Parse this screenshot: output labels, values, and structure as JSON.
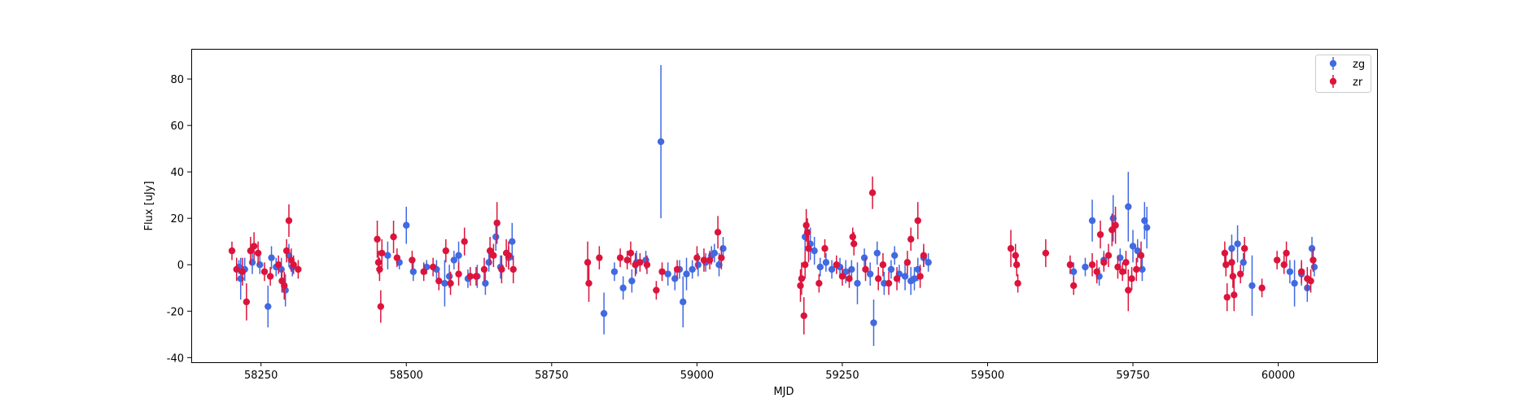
{
  "chart_data": {
    "type": "scatter",
    "title": "",
    "xlabel": "MJD",
    "ylabel": "Flux [uJy]",
    "xlim": [
      58130,
      60170
    ],
    "ylim": [
      -42,
      93
    ],
    "xticks": [
      58250,
      58500,
      58750,
      59000,
      59250,
      59500,
      59750,
      60000
    ],
    "yticks": [
      -40,
      -20,
      0,
      20,
      40,
      60,
      80
    ],
    "grid": false,
    "legend": {
      "placement": "top-right"
    },
    "series": [
      {
        "name": "zg",
        "color": "#4169e1",
        "marker": "circle",
        "points": [
          [
            58212,
            -1,
            3
          ],
          [
            58215,
            -6,
            9
          ],
          [
            58222,
            -2,
            5
          ],
          [
            58235,
            1,
            5
          ],
          [
            58248,
            0,
            4
          ],
          [
            58262,
            -18,
            9
          ],
          [
            58268,
            3,
            5
          ],
          [
            58276,
            -1,
            4
          ],
          [
            58285,
            -2,
            5
          ],
          [
            58292,
            -11,
            7
          ],
          [
            58298,
            4,
            5
          ],
          [
            58304,
            -1,
            4
          ],
          [
            58468,
            4,
            6
          ],
          [
            58488,
            1,
            3
          ],
          [
            58500,
            17,
            8
          ],
          [
            58512,
            -3,
            4
          ],
          [
            58535,
            -1,
            3
          ],
          [
            58552,
            -2,
            4
          ],
          [
            58566,
            -8,
            10
          ],
          [
            58574,
            -5,
            5
          ],
          [
            58582,
            2,
            4
          ],
          [
            58590,
            4,
            6
          ],
          [
            58606,
            -6,
            4
          ],
          [
            58622,
            -5,
            5
          ],
          [
            58636,
            -8,
            5
          ],
          [
            58642,
            1,
            4
          ],
          [
            58654,
            12,
            6
          ],
          [
            58662,
            -1,
            5
          ],
          [
            58676,
            3,
            5
          ],
          [
            58682,
            10,
            8
          ],
          [
            58840,
            -21,
            9
          ],
          [
            58858,
            -3,
            4
          ],
          [
            58873,
            -10,
            5
          ],
          [
            58888,
            -7,
            5
          ],
          [
            58896,
            1,
            5
          ],
          [
            58912,
            2,
            4
          ],
          [
            58938,
            53,
            33
          ],
          [
            58950,
            -4,
            5
          ],
          [
            58962,
            -6,
            5
          ],
          [
            58970,
            -2,
            4
          ],
          [
            58976,
            -16,
            11
          ],
          [
            58982,
            -4,
            7
          ],
          [
            58992,
            -2,
            4
          ],
          [
            59002,
            0,
            5
          ],
          [
            59015,
            1,
            4
          ],
          [
            59025,
            4,
            4
          ],
          [
            59030,
            5,
            4
          ],
          [
            59038,
            0,
            5
          ],
          [
            59045,
            7,
            5
          ],
          [
            59186,
            12,
            6
          ],
          [
            59195,
            9,
            7
          ],
          [
            59202,
            6,
            6
          ],
          [
            59212,
            -1,
            4
          ],
          [
            59222,
            1,
            4
          ],
          [
            59232,
            -2,
            4
          ],
          [
            59246,
            -1,
            4
          ],
          [
            59256,
            -3,
            5
          ],
          [
            59266,
            -2,
            4
          ],
          [
            59276,
            -8,
            9
          ],
          [
            59288,
            3,
            4
          ],
          [
            59298,
            -4,
            5
          ],
          [
            59304,
            -25,
            10
          ],
          [
            59310,
            5,
            5
          ],
          [
            59322,
            -8,
            5
          ],
          [
            59334,
            -2,
            4
          ],
          [
            59340,
            4,
            4
          ],
          [
            59348,
            -4,
            4
          ],
          [
            59358,
            -5,
            6
          ],
          [
            59368,
            -7,
            6
          ],
          [
            59374,
            -6,
            5
          ],
          [
            59380,
            -2,
            5
          ],
          [
            59390,
            3,
            4
          ],
          [
            59398,
            1,
            4
          ],
          [
            59648,
            -3,
            4
          ],
          [
            59668,
            -1,
            4
          ],
          [
            59680,
            19,
            9
          ],
          [
            59692,
            -5,
            4
          ],
          [
            59700,
            2,
            4
          ],
          [
            59716,
            20,
            10
          ],
          [
            59728,
            3,
            4
          ],
          [
            59742,
            25,
            15
          ],
          [
            59750,
            8,
            7
          ],
          [
            59758,
            6,
            5
          ],
          [
            59766,
            -2,
            5
          ],
          [
            59770,
            19,
            8
          ],
          [
            59774,
            16,
            9
          ],
          [
            59920,
            7,
            6
          ],
          [
            59930,
            9,
            8
          ],
          [
            59940,
            1,
            4
          ],
          [
            59955,
            -9,
            13
          ],
          [
            60020,
            -3,
            5
          ],
          [
            60028,
            -8,
            10
          ],
          [
            60040,
            -4,
            5
          ],
          [
            60050,
            -10,
            6
          ],
          [
            60058,
            7,
            5
          ],
          [
            60062,
            -1,
            4
          ]
        ]
      },
      {
        "name": "zr",
        "color": "#dc143c",
        "marker": "circle",
        "points": [
          [
            58200,
            6,
            4
          ],
          [
            58208,
            -2,
            5
          ],
          [
            58218,
            -3,
            6
          ],
          [
            58225,
            -16,
            8
          ],
          [
            58232,
            6,
            6
          ],
          [
            58238,
            8,
            6
          ],
          [
            58245,
            5,
            5
          ],
          [
            58256,
            -3,
            4
          ],
          [
            58266,
            -5,
            4
          ],
          [
            58280,
            0,
            4
          ],
          [
            58286,
            -7,
            5
          ],
          [
            58290,
            -9,
            6
          ],
          [
            58294,
            6,
            5
          ],
          [
            58298,
            19,
            7
          ],
          [
            58302,
            2,
            5
          ],
          [
            58306,
            0,
            4
          ],
          [
            58314,
            -2,
            4
          ],
          [
            58450,
            11,
            8
          ],
          [
            58452,
            1,
            5
          ],
          [
            58454,
            -2,
            5
          ],
          [
            58456,
            -18,
            7
          ],
          [
            58458,
            5,
            6
          ],
          [
            58478,
            12,
            7
          ],
          [
            58484,
            3,
            4
          ],
          [
            58510,
            2,
            4
          ],
          [
            58530,
            -3,
            4
          ],
          [
            58546,
            -1,
            4
          ],
          [
            58556,
            -7,
            4
          ],
          [
            58568,
            6,
            5
          ],
          [
            58576,
            -8,
            5
          ],
          [
            58590,
            -4,
            5
          ],
          [
            58600,
            10,
            6
          ],
          [
            58610,
            -5,
            4
          ],
          [
            58620,
            -5,
            4
          ],
          [
            58634,
            -2,
            5
          ],
          [
            58644,
            6,
            6
          ],
          [
            58650,
            4,
            5
          ],
          [
            58656,
            18,
            9
          ],
          [
            58664,
            -2,
            6
          ],
          [
            58672,
            5,
            6
          ],
          [
            58676,
            4,
            6
          ],
          [
            58684,
            -2,
            6
          ],
          [
            58812,
            1,
            9
          ],
          [
            58814,
            -8,
            8
          ],
          [
            58832,
            3,
            5
          ],
          [
            58868,
            3,
            4
          ],
          [
            58880,
            2,
            4
          ],
          [
            58886,
            5,
            5
          ],
          [
            58894,
            0,
            5
          ],
          [
            58902,
            1,
            4
          ],
          [
            58914,
            0,
            4
          ],
          [
            58930,
            -11,
            4
          ],
          [
            58940,
            -3,
            4
          ],
          [
            58966,
            -2,
            4
          ],
          [
            59000,
            3,
            5
          ],
          [
            59012,
            2,
            5
          ],
          [
            59022,
            2,
            4
          ],
          [
            59036,
            14,
            7
          ],
          [
            59042,
            3,
            5
          ],
          [
            59178,
            -9,
            7
          ],
          [
            59180,
            -6,
            7
          ],
          [
            59184,
            -22,
            8
          ],
          [
            59186,
            0,
            6
          ],
          [
            59188,
            17,
            7
          ],
          [
            59190,
            14,
            6
          ],
          [
            59192,
            7,
            6
          ],
          [
            59210,
            -8,
            4
          ],
          [
            59220,
            7,
            4
          ],
          [
            59240,
            0,
            4
          ],
          [
            59250,
            -5,
            4
          ],
          [
            59262,
            -6,
            4
          ],
          [
            59268,
            12,
            4
          ],
          [
            59270,
            9,
            5
          ],
          [
            59290,
            -2,
            5
          ],
          [
            59302,
            31,
            7
          ],
          [
            59312,
            -6,
            5
          ],
          [
            59320,
            0,
            5
          ],
          [
            59330,
            -8,
            5
          ],
          [
            59344,
            -6,
            5
          ],
          [
            59362,
            1,
            5
          ],
          [
            59368,
            11,
            5
          ],
          [
            59380,
            19,
            8
          ],
          [
            59384,
            -5,
            5
          ],
          [
            59390,
            4,
            5
          ],
          [
            59540,
            7,
            8
          ],
          [
            59548,
            4,
            5
          ],
          [
            59550,
            0,
            5
          ],
          [
            59552,
            -8,
            4
          ],
          [
            59600,
            5,
            6
          ],
          [
            59642,
            0,
            4
          ],
          [
            59648,
            -9,
            4
          ],
          [
            59680,
            0,
            5
          ],
          [
            59688,
            -3,
            5
          ],
          [
            59694,
            13,
            6
          ],
          [
            59700,
            1,
            4
          ],
          [
            59708,
            4,
            5
          ],
          [
            59714,
            15,
            7
          ],
          [
            59720,
            17,
            8
          ],
          [
            59724,
            -1,
            5
          ],
          [
            59732,
            -3,
            4
          ],
          [
            59738,
            1,
            5
          ],
          [
            59742,
            -11,
            9
          ],
          [
            59748,
            -6,
            5
          ],
          [
            59756,
            -2,
            5
          ],
          [
            59764,
            4,
            6
          ],
          [
            59908,
            5,
            5
          ],
          [
            59910,
            0,
            5
          ],
          [
            59912,
            -14,
            6
          ],
          [
            59920,
            1,
            5
          ],
          [
            59922,
            -5,
            5
          ],
          [
            59924,
            -13,
            7
          ],
          [
            59935,
            -4,
            4
          ],
          [
            59942,
            7,
            5
          ],
          [
            59972,
            -10,
            4
          ],
          [
            59998,
            2,
            4
          ],
          [
            60010,
            0,
            4
          ],
          [
            60014,
            5,
            5
          ],
          [
            60040,
            -3,
            5
          ],
          [
            60050,
            -6,
            5
          ],
          [
            60056,
            -7,
            5
          ],
          [
            60060,
            2,
            5
          ]
        ]
      }
    ]
  }
}
